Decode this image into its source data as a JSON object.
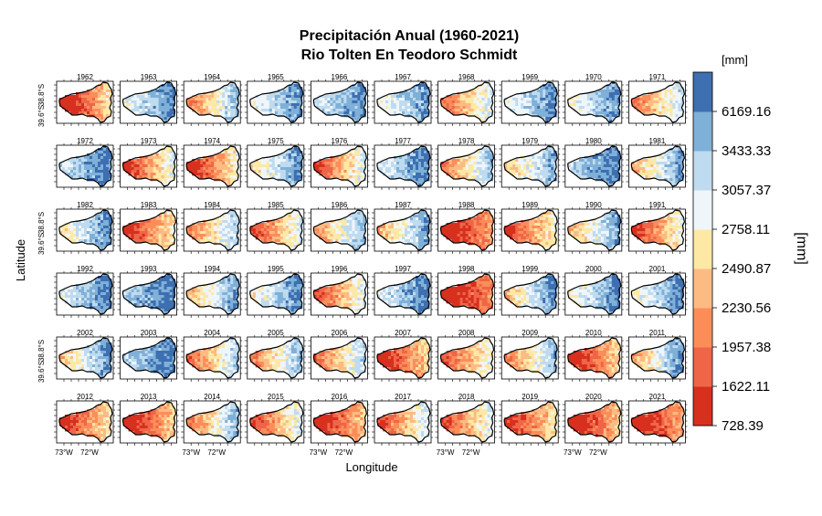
{
  "chart_data": {
    "type": "heatmap",
    "title": "Precipitación Anual (1960-2021)",
    "subtitle": "Rio Tolten En Teodoro Schmidt",
    "xlabel": "Longitude",
    "ylabel": "Latitude",
    "colorbar": {
      "unit_top": "[mm]",
      "label": "[mm]",
      "breaks": [
        "728.39",
        "1622.11",
        "1957.38",
        "2230.56",
        "2490.87",
        "2758.11",
        "3057.37",
        "3433.33",
        "6169.16"
      ],
      "colors": [
        "#d7301f",
        "#ef6548",
        "#fc8d59",
        "#fdbb84",
        "#fee8a6",
        "#eff6fb",
        "#bfdbef",
        "#7fb0d8",
        "#3d6fb1"
      ]
    },
    "x_tick_labels": [
      "73°W",
      "72°W"
    ],
    "y_tick_labels": [
      "39.6°S",
      "38.8°S"
    ],
    "layout": {
      "rows": 6,
      "cols": 10,
      "x_label_cols": [
        0,
        2,
        4,
        6,
        8
      ],
      "y_label_rows": [
        0,
        2,
        4
      ]
    },
    "panels": [
      {
        "year": "1962",
        "wetness": 0.15,
        "grad": 0.8
      },
      {
        "year": "1963",
        "wetness": 0.75,
        "grad": 0.4
      },
      {
        "year": "1964",
        "wetness": 0.5,
        "grad": 0.7
      },
      {
        "year": "1965",
        "wetness": 0.72,
        "grad": 0.4
      },
      {
        "year": "1966",
        "wetness": 0.78,
        "grad": 0.3
      },
      {
        "year": "1967",
        "wetness": 0.72,
        "grad": 0.4
      },
      {
        "year": "1968",
        "wetness": 0.4,
        "grad": 0.6
      },
      {
        "year": "1969",
        "wetness": 0.75,
        "grad": 0.4
      },
      {
        "year": "1970",
        "wetness": 0.72,
        "grad": 0.4
      },
      {
        "year": "1971",
        "wetness": 0.45,
        "grad": 0.6
      },
      {
        "year": "1972",
        "wetness": 0.82,
        "grad": 0.3
      },
      {
        "year": "1973",
        "wetness": 0.32,
        "grad": 0.7
      },
      {
        "year": "1974",
        "wetness": 0.25,
        "grad": 0.7
      },
      {
        "year": "1975",
        "wetness": 0.68,
        "grad": 0.5
      },
      {
        "year": "1976",
        "wetness": 0.35,
        "grad": 0.7
      },
      {
        "year": "1977",
        "wetness": 0.78,
        "grad": 0.4
      },
      {
        "year": "1978",
        "wetness": 0.5,
        "grad": 0.7
      },
      {
        "year": "1979",
        "wetness": 0.62,
        "grad": 0.5
      },
      {
        "year": "1980",
        "wetness": 0.82,
        "grad": 0.3
      },
      {
        "year": "1981",
        "wetness": 0.6,
        "grad": 0.6
      },
      {
        "year": "1982",
        "wetness": 0.7,
        "grad": 0.5
      },
      {
        "year": "1983",
        "wetness": 0.25,
        "grad": 0.6
      },
      {
        "year": "1984",
        "wetness": 0.5,
        "grad": 0.6
      },
      {
        "year": "1985",
        "wetness": 0.35,
        "grad": 0.7
      },
      {
        "year": "1986",
        "wetness": 0.55,
        "grad": 0.6
      },
      {
        "year": "1987",
        "wetness": 0.6,
        "grad": 0.6
      },
      {
        "year": "1988",
        "wetness": 0.12,
        "grad": 0.5
      },
      {
        "year": "1989",
        "wetness": 0.3,
        "grad": 0.6
      },
      {
        "year": "1990",
        "wetness": 0.6,
        "grad": 0.6
      },
      {
        "year": "1991",
        "wetness": 0.3,
        "grad": 0.7
      },
      {
        "year": "1992",
        "wetness": 0.78,
        "grad": 0.4
      },
      {
        "year": "1993",
        "wetness": 0.85,
        "grad": 0.3
      },
      {
        "year": "1994",
        "wetness": 0.62,
        "grad": 0.6
      },
      {
        "year": "1995",
        "wetness": 0.72,
        "grad": 0.5
      },
      {
        "year": "1996",
        "wetness": 0.35,
        "grad": 0.7
      },
      {
        "year": "1997",
        "wetness": 0.78,
        "grad": 0.4
      },
      {
        "year": "1998",
        "wetness": 0.08,
        "grad": 0.4
      },
      {
        "year": "1999",
        "wetness": 0.65,
        "grad": 0.6
      },
      {
        "year": "2000",
        "wetness": 0.72,
        "grad": 0.5
      },
      {
        "year": "2001",
        "wetness": 0.72,
        "grad": 0.5
      },
      {
        "year": "2002",
        "wetness": 0.65,
        "grad": 0.6
      },
      {
        "year": "2003",
        "wetness": 0.82,
        "grad": 0.3
      },
      {
        "year": "2004",
        "wetness": 0.45,
        "grad": 0.7
      },
      {
        "year": "2005",
        "wetness": 0.5,
        "grad": 0.7
      },
      {
        "year": "2006",
        "wetness": 0.45,
        "grad": 0.7
      },
      {
        "year": "2007",
        "wetness": 0.2,
        "grad": 0.6
      },
      {
        "year": "2008",
        "wetness": 0.35,
        "grad": 0.6
      },
      {
        "year": "2009",
        "wetness": 0.5,
        "grad": 0.7
      },
      {
        "year": "2010",
        "wetness": 0.2,
        "grad": 0.6
      },
      {
        "year": "2011",
        "wetness": 0.6,
        "grad": 0.7
      },
      {
        "year": "2012",
        "wetness": 0.25,
        "grad": 0.6
      },
      {
        "year": "2013",
        "wetness": 0.18,
        "grad": 0.6
      },
      {
        "year": "2014",
        "wetness": 0.5,
        "grad": 0.7
      },
      {
        "year": "2015",
        "wetness": 0.35,
        "grad": 0.7
      },
      {
        "year": "2016",
        "wetness": 0.18,
        "grad": 0.6
      },
      {
        "year": "2017",
        "wetness": 0.38,
        "grad": 0.7
      },
      {
        "year": "2018",
        "wetness": 0.35,
        "grad": 0.7
      },
      {
        "year": "2019",
        "wetness": 0.25,
        "grad": 0.6
      },
      {
        "year": "2020",
        "wetness": 0.15,
        "grad": 0.6
      },
      {
        "year": "2021",
        "wetness": 0.12,
        "grad": 0.5
      }
    ]
  }
}
